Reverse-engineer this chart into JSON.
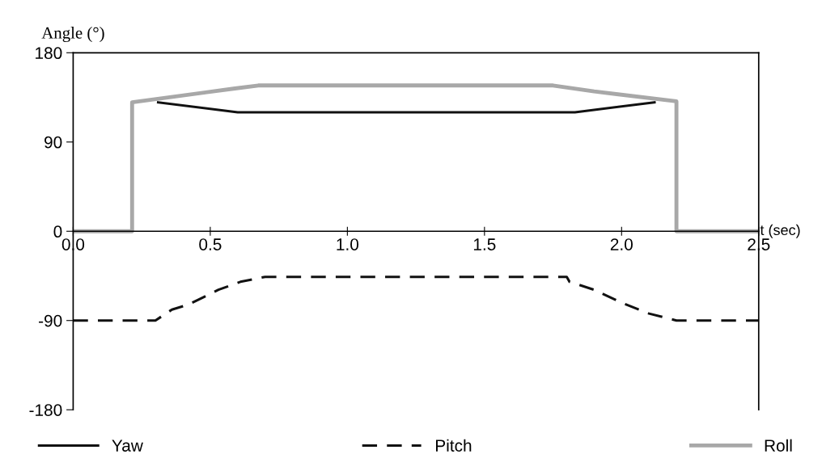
{
  "chart_data": {
    "type": "line",
    "ylabel": "Angle (°)",
    "xlabel": "t (sec)",
    "xlim": [
      0,
      2.5
    ],
    "ylim": [
      -180,
      180
    ],
    "xticks": [
      {
        "value": 0,
        "label": "0.0"
      },
      {
        "value": 0.5,
        "label": "0.5"
      },
      {
        "value": 1,
        "label": "1.0"
      },
      {
        "value": 1.5,
        "label": "1.5"
      },
      {
        "value": 2,
        "label": "2.0"
      },
      {
        "value": 2.5,
        "label": "2.5"
      }
    ],
    "yticks": [
      -180,
      -90,
      0,
      90,
      180
    ],
    "grid": false,
    "legend": "bottom",
    "series": [
      {
        "name": "Yaw",
        "color": "#111111",
        "line_style": "solid",
        "x": [
          0.31,
          0.6,
          1.83,
          2.12
        ],
        "values": [
          130,
          120,
          120,
          130
        ]
      },
      {
        "name": "Pitch",
        "color": "#111111",
        "line_style": "dashed",
        "x": [
          0,
          0.3,
          0.36,
          0.42,
          0.53,
          0.61,
          0.7,
          1.8,
          1.81,
          1.9,
          2.0,
          2.1,
          2.2,
          2.5
        ],
        "values": [
          -90,
          -90,
          -79,
          -74,
          -59,
          -51,
          -46,
          -46,
          -51,
          -59,
          -72,
          -83,
          -90,
          -90
        ]
      },
      {
        "name": "Roll",
        "color": "#a8a8a8",
        "line_style": "solid",
        "x": [
          0,
          0.215,
          0.215,
          0.59,
          0.675,
          1.75,
          1.9,
          2.2,
          2.2,
          2.5
        ],
        "values": [
          0,
          0,
          130,
          144,
          147,
          147,
          141,
          131,
          0,
          0
        ]
      }
    ]
  }
}
